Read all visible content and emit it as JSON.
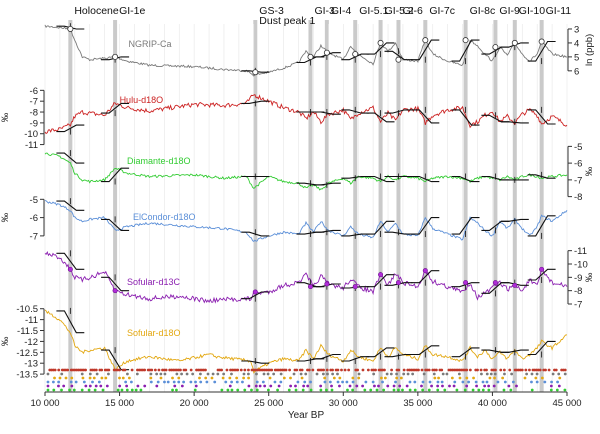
{
  "chart_data": {
    "type": "line",
    "xlabel": "Year BP",
    "x_range": [
      10000,
      45000
    ],
    "x_ticks": [
      10000,
      15000,
      20000,
      25000,
      30000,
      35000,
      40000,
      45000
    ],
    "x_tick_labels": [
      "10 000",
      "15 000",
      "20 000",
      "25 000",
      "30 000",
      "35 000",
      "40 000",
      "45 000"
    ],
    "right_axis_label": "ln (ppb)",
    "unit_label": "‰",
    "events": [
      {
        "label": "Holocene",
        "x": 11700
      },
      {
        "label": "GI-1e",
        "x": 14700
      },
      {
        "label": "GS-3\nDust peak 1",
        "x": 24100
      },
      {
        "label": "GI-3",
        "x": 27800
      },
      {
        "label": "GI-4",
        "x": 28900
      },
      {
        "label": "GI-5.1",
        "x": 30800
      },
      {
        "label": "GI-5.2",
        "x": 32500
      },
      {
        "label": "GI-6",
        "x": 33700
      },
      {
        "label": "GI-7c",
        "x": 35500
      },
      {
        "label": "GI-8c",
        "x": 38200
      },
      {
        "label": "GI-9",
        "x": 40200
      },
      {
        "label": "GI-10",
        "x": 41500
      },
      {
        "label": "GI-11",
        "x": 43300
      }
    ],
    "series": [
      {
        "name": "NGRIP-Ca",
        "color": "#7a7a7a",
        "axis_side": "right",
        "ticks": [
          3,
          4,
          5,
          6
        ],
        "ylim": [
          2.5,
          6.8
        ],
        "x": [
          10000,
          11000,
          11700,
          12000,
          12500,
          13000,
          14000,
          14700,
          15500,
          17000,
          20000,
          22000,
          23500,
          24000,
          25000,
          26000,
          27000,
          27500,
          28000,
          28500,
          29000,
          30000,
          30500,
          31000,
          32000,
          32500,
          33000,
          33500,
          34000,
          35000,
          35500,
          36000,
          37000,
          38000,
          38500,
          39000,
          39500,
          40000,
          40500,
          41000,
          41500,
          42000,
          42500,
          43000,
          43300,
          44000,
          45000
        ],
        "values": [
          2.8,
          2.9,
          3.0,
          3.8,
          5.0,
          5.2,
          5.1,
          5.0,
          5.3,
          5.6,
          5.7,
          5.9,
          6.0,
          6.3,
          6.1,
          5.8,
          5.4,
          4.6,
          5.0,
          4.2,
          4.7,
          5.2,
          4.2,
          4.8,
          5.5,
          4.0,
          4.6,
          4.0,
          5.2,
          5.3,
          3.8,
          4.8,
          5.3,
          5.6,
          3.8,
          4.2,
          4.8,
          5.3,
          4.3,
          4.9,
          4.0,
          4.8,
          5.3,
          4.8,
          3.9,
          4.8,
          5.0
        ]
      },
      {
        "name": "Hulu-d18O",
        "color": "#cc2222",
        "axis_side": "left",
        "ticks": [
          -11,
          -10,
          -9,
          -8,
          -7,
          -6
        ],
        "ylim": [
          -5.6,
          -11.5
        ],
        "x": [
          10000,
          11000,
          11700,
          12000,
          12500,
          13000,
          14000,
          14700,
          15500,
          17000,
          20000,
          22000,
          23500,
          24000,
          25000,
          26000,
          27000,
          27500,
          28000,
          28500,
          29000,
          30000,
          30500,
          31000,
          32000,
          32500,
          33000,
          33500,
          34000,
          35000,
          35500,
          36000,
          37000,
          38000,
          38500,
          39000,
          39500,
          40000,
          40500,
          41000,
          41500,
          42000,
          42500,
          43000,
          43300,
          44000,
          45000
        ],
        "values": [
          -9.8,
          -9.6,
          -9.2,
          -8.4,
          -8.0,
          -8.1,
          -8.3,
          -7.2,
          -7.6,
          -7.9,
          -7.3,
          -7.4,
          -7.2,
          -6.4,
          -7.0,
          -7.6,
          -8.0,
          -8.6,
          -8.0,
          -8.9,
          -8.2,
          -7.8,
          -8.7,
          -8.1,
          -7.6,
          -8.9,
          -8.1,
          -8.8,
          -7.8,
          -7.7,
          -9.0,
          -8.3,
          -7.8,
          -7.6,
          -9.2,
          -8.9,
          -8.3,
          -7.9,
          -8.9,
          -8.4,
          -9.0,
          -8.2,
          -7.8,
          -8.3,
          -9.1,
          -8.4,
          -9.2
        ]
      },
      {
        "name": "Diamante-d18O",
        "color": "#33cc33",
        "axis_side": "right",
        "ticks": [
          -5,
          -6,
          -7,
          -8
        ],
        "ylim": [
          -4.5,
          -8.5
        ],
        "x": [
          10000,
          11000,
          11700,
          12000,
          12500,
          13000,
          14000,
          14700,
          15500,
          17000,
          20000,
          22000,
          23500,
          24000,
          25000,
          26000,
          27000,
          27500,
          28000,
          28500,
          29000,
          30000,
          30500,
          31000,
          32000,
          32500,
          33000,
          33500,
          34000,
          35000,
          35500,
          36000,
          37000,
          38000,
          38500,
          39000,
          39500,
          40000,
          40500,
          41000,
          41500,
          42000,
          42500,
          43000,
          43300,
          44000,
          45000
        ],
        "values": [
          -5.4,
          -5.6,
          -6.0,
          -6.6,
          -7.0,
          -7.1,
          -7.0,
          -6.3,
          -6.6,
          -6.8,
          -6.7,
          -6.9,
          -6.8,
          -7.5,
          -6.8,
          -7.1,
          -7.2,
          -7.5,
          -7.3,
          -7.6,
          -7.2,
          -6.9,
          -7.2,
          -6.8,
          -6.9,
          -7.1,
          -6.8,
          -7.0,
          -6.8,
          -6.9,
          -7.1,
          -6.9,
          -6.8,
          -6.9,
          -7.1,
          -6.9,
          -6.8,
          -6.9,
          -7.0,
          -6.8,
          -7.0,
          -6.8,
          -6.7,
          -6.8,
          -6.9,
          -6.8,
          -6.7
        ]
      },
      {
        "name": "ElCondor-d18O",
        "color": "#5b8fd8",
        "axis_side": "left",
        "ticks": [
          -5,
          -6,
          -7
        ],
        "ylim": [
          -4.6,
          -8.1
        ],
        "x": [
          10000,
          11000,
          11700,
          12000,
          12500,
          13000,
          14000,
          14700,
          15500,
          17000,
          20000,
          22000,
          23500,
          24000,
          25000,
          26000,
          27000,
          27500,
          28000,
          28500,
          29000,
          30000,
          30500,
          31000,
          32000,
          32500,
          33000,
          33500,
          34000,
          35000,
          35500,
          36000,
          37000,
          38000,
          38500,
          39000,
          39500,
          40000,
          40500,
          41000,
          41500,
          42000,
          42500,
          43000,
          43300,
          44000,
          45000
        ],
        "values": [
          -5.1,
          -5.3,
          -5.6,
          -6.0,
          -6.2,
          -6.1,
          -6.0,
          -6.7,
          -6.5,
          -6.3,
          -6.5,
          -6.6,
          -6.8,
          -7.3,
          -7.0,
          -6.8,
          -6.9,
          -6.3,
          -6.8,
          -6.2,
          -6.7,
          -7.0,
          -6.5,
          -6.9,
          -7.1,
          -6.2,
          -6.8,
          -6.3,
          -6.9,
          -7.0,
          -6.0,
          -6.6,
          -6.9,
          -7.2,
          -6.0,
          -6.3,
          -6.7,
          -7.0,
          -6.2,
          -6.6,
          -6.1,
          -6.6,
          -7.0,
          -6.5,
          -5.9,
          -6.2,
          -5.6
        ]
      },
      {
        "name": "Sofular-d13C",
        "color": "#8b1fb0",
        "axis_side": "right",
        "ticks": [
          -11,
          -10,
          -9,
          -8,
          -7
        ],
        "ylim": [
          -11.5,
          -6.4
        ],
        "x": [
          10000,
          11000,
          11700,
          12000,
          12500,
          13000,
          14000,
          14700,
          15500,
          17000,
          19000,
          21000,
          21500,
          23800,
          24000,
          25000,
          26000,
          27000,
          27500,
          28000,
          28500,
          29000,
          30000,
          30500,
          31000,
          32000,
          32500,
          33000,
          33500,
          34000,
          35000,
          35500,
          36000,
          37000,
          38000,
          38500,
          39000,
          39500,
          40000,
          40500,
          41000,
          41500,
          42000,
          42500,
          43000,
          43300,
          44000,
          45000
        ],
        "values": [
          -10.8,
          -10.5,
          -9.6,
          -9.0,
          -8.8,
          -9.0,
          -9.4,
          -8.0,
          -7.7,
          -7.4,
          -7.6,
          -7.2,
          -7.3,
          -7.4,
          -7.8,
          -7.9,
          -8.4,
          -8.6,
          -9.2,
          -8.3,
          -9.1,
          -8.5,
          -8.2,
          -8.9,
          -8.3,
          -7.9,
          -9.2,
          -8.4,
          -9.3,
          -8.6,
          -8.3,
          -9.5,
          -8.7,
          -8.3,
          -7.9,
          -8.6,
          -7.5,
          -7.8,
          -8.2,
          -8.6,
          -8.1,
          -8.4,
          -8.0,
          -8.8,
          -8.3,
          -9.6,
          -8.6,
          -8.3
        ]
      },
      {
        "name": "Sofular-d18O",
        "color": "#e3a812",
        "axis_side": "left",
        "ticks": [
          -10.5,
          -11,
          -11.5,
          -12,
          -12.5,
          -13,
          -13.5
        ],
        "ylim": [
          -10.1,
          -14.0
        ],
        "x": [
          10000,
          11000,
          11700,
          12000,
          12500,
          13000,
          14000,
          14700,
          15500,
          17000,
          19000,
          21000,
          21500,
          23800,
          24000,
          25000,
          26000,
          27000,
          27500,
          28000,
          28500,
          29000,
          30000,
          30500,
          31000,
          32000,
          32500,
          33000,
          33500,
          34000,
          35000,
          35500,
          36000,
          37000,
          38000,
          38500,
          39000,
          39500,
          40000,
          40500,
          41000,
          41500,
          42000,
          42500,
          43000,
          43300,
          44000,
          45000
        ],
        "values": [
          -10.6,
          -11.0,
          -11.6,
          -12.2,
          -12.5,
          -12.4,
          -12.3,
          -13.3,
          -12.9,
          -12.7,
          -12.9,
          -12.6,
          -12.7,
          -12.9,
          -13.4,
          -13.0,
          -12.8,
          -12.9,
          -12.4,
          -12.8,
          -12.2,
          -12.6,
          -12.9,
          -12.4,
          -12.7,
          -12.9,
          -12.3,
          -12.7,
          -12.3,
          -12.6,
          -12.8,
          -12.2,
          -12.6,
          -12.7,
          -12.9,
          -12.3,
          -12.7,
          -12.4,
          -12.8,
          -12.5,
          -12.8,
          -12.4,
          -12.8,
          -12.6,
          -12.3,
          -12.0,
          -12.3,
          -11.7
        ]
      }
    ]
  }
}
